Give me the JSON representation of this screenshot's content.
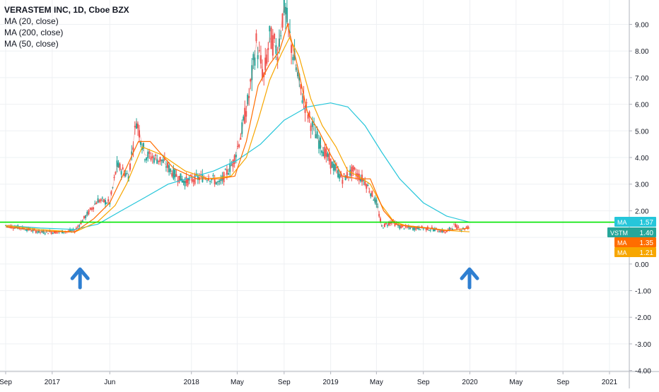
{
  "legend": {
    "title": "VERASTEM INC, 1D, Cboe BZX",
    "ma20": "MA (20, close)",
    "ma200": "MA (200, close)",
    "ma50": "MA (50, close)"
  },
  "colors": {
    "candle_up": "#26a69a",
    "candle_down": "#ef5350",
    "ma20": "#ff6d00",
    "ma50": "#f7a600",
    "ma200": "#26c6da",
    "hline": "#00e600",
    "price_badge": "#26a69a",
    "arrow": "#2f7fd1",
    "grid": "#eef0f3"
  },
  "chart_data": {
    "type": "line",
    "title": "VERASTEM INC, 1D, Cboe BZX",
    "ylim": [
      -4,
      10
    ],
    "grid": true,
    "y_ticks": [
      "9.00",
      "8.00",
      "7.00",
      "6.00",
      "5.00",
      "4.00",
      "3.00",
      "2.00",
      "1.00",
      "0.00",
      "-1.00",
      "-2.00",
      "-3.00",
      "-4.00"
    ],
    "y_tick_values": [
      9,
      8,
      7,
      6,
      5,
      4,
      3,
      2,
      1,
      0,
      -1,
      -2,
      -3,
      -4
    ],
    "x_ticks": [
      "Sep",
      "2017",
      "Jun",
      "2018",
      "May",
      "Sep",
      "2019",
      "May",
      "Sep",
      "2020",
      "May",
      "Sep",
      "2021"
    ],
    "x_tick_times": [
      "2016-09-01",
      "2017-01-01",
      "2017-06-01",
      "2018-01-01",
      "2018-05-01",
      "2018-09-01",
      "2019-01-01",
      "2019-05-01",
      "2019-09-01",
      "2020-01-01",
      "2020-05-01",
      "2020-09-01",
      "2021-01-01"
    ],
    "x_range": [
      "2016-09-01",
      "2021-02-15"
    ],
    "series": [
      {
        "name": "VSTM",
        "kind": "price",
        "x": [
          "2016-09-01",
          "2016-10-15",
          "2016-12-01",
          "2017-01-15",
          "2017-03-01",
          "2017-04-15",
          "2017-05-01",
          "2017-06-01",
          "2017-06-20",
          "2017-07-20",
          "2017-08-10",
          "2017-09-01",
          "2017-10-15",
          "2017-11-15",
          "2017-12-15",
          "2018-01-10",
          "2018-02-15",
          "2018-03-15",
          "2018-04-20",
          "2018-05-10",
          "2018-06-01",
          "2018-06-20",
          "2018-07-10",
          "2018-07-25",
          "2018-08-15",
          "2018-09-01",
          "2018-09-20",
          "2018-10-15",
          "2018-11-10",
          "2018-12-01",
          "2019-01-01",
          "2019-02-01",
          "2019-03-01",
          "2019-04-01",
          "2019-05-01",
          "2019-05-15",
          "2019-06-10",
          "2019-07-01",
          "2019-08-01",
          "2019-09-01",
          "2019-10-01",
          "2019-11-01",
          "2019-11-20",
          "2019-12-10",
          "2019-12-31"
        ],
        "values": [
          1.45,
          1.35,
          1.2,
          1.2,
          1.25,
          2.1,
          2.4,
          2.3,
          3.7,
          3.3,
          5.4,
          4.1,
          3.9,
          3.4,
          3.1,
          3.2,
          3.3,
          3.0,
          3.8,
          4.8,
          6.3,
          8.3,
          7.0,
          8.5,
          8.0,
          9.7,
          8.2,
          6.5,
          5.3,
          4.6,
          3.8,
          3.2,
          3.5,
          3.1,
          2.3,
          1.4,
          1.6,
          1.4,
          1.35,
          1.35,
          1.3,
          1.2,
          1.45,
          1.3,
          1.4
        ]
      },
      {
        "name": "MA (20, close)",
        "kind": "ma20",
        "x": [
          "2016-09-01",
          "2016-12-01",
          "2017-03-01",
          "2017-04-20",
          "2017-06-01",
          "2017-07-01",
          "2017-08-15",
          "2017-09-15",
          "2017-11-15",
          "2018-01-15",
          "2018-03-15",
          "2018-04-25",
          "2018-05-25",
          "2018-06-25",
          "2018-07-25",
          "2018-08-20",
          "2018-09-10",
          "2018-10-05",
          "2018-11-01",
          "2018-12-01",
          "2019-01-01",
          "2019-02-01",
          "2019-03-15",
          "2019-04-15",
          "2019-05-20",
          "2019-06-20",
          "2019-08-01",
          "2019-09-15",
          "2019-11-01",
          "2019-12-01",
          "2019-12-31"
        ],
        "values": [
          1.4,
          1.25,
          1.2,
          1.7,
          2.3,
          3.2,
          4.6,
          4.6,
          3.6,
          3.2,
          3.2,
          3.3,
          4.6,
          6.7,
          7.5,
          8.0,
          9.0,
          7.5,
          5.7,
          5.0,
          4.1,
          3.3,
          3.2,
          3.2,
          2.0,
          1.5,
          1.4,
          1.35,
          1.25,
          1.3,
          1.35
        ]
      },
      {
        "name": "MA (50, close)",
        "kind": "ma50",
        "x": [
          "2016-09-01",
          "2016-12-01",
          "2017-03-01",
          "2017-05-01",
          "2017-06-15",
          "2017-07-15",
          "2017-08-25",
          "2017-10-15",
          "2017-12-15",
          "2018-02-15",
          "2018-04-15",
          "2018-05-25",
          "2018-06-25",
          "2018-07-25",
          "2018-08-25",
          "2018-09-15",
          "2018-10-10",
          "2018-11-10",
          "2018-12-10",
          "2019-01-15",
          "2019-02-15",
          "2019-03-15",
          "2019-04-15",
          "2019-05-15",
          "2019-06-15",
          "2019-07-15",
          "2019-08-15",
          "2019-09-15",
          "2019-10-15",
          "2019-11-15",
          "2019-12-31"
        ],
        "values": [
          1.45,
          1.3,
          1.2,
          1.6,
          2.2,
          3.0,
          4.4,
          4.1,
          3.5,
          3.2,
          3.3,
          4.0,
          5.4,
          6.9,
          7.9,
          8.5,
          7.8,
          6.2,
          5.2,
          4.4,
          3.5,
          3.3,
          3.0,
          2.2,
          1.6,
          1.45,
          1.4,
          1.35,
          1.3,
          1.25,
          1.21
        ]
      },
      {
        "name": "MA (200, close)",
        "kind": "ma200",
        "x": [
          "2016-09-01",
          "2016-12-01",
          "2017-03-01",
          "2017-05-01",
          "2017-07-01",
          "2017-09-01",
          "2017-11-01",
          "2018-01-01",
          "2018-03-01",
          "2018-05-01",
          "2018-07-01",
          "2018-09-01",
          "2018-11-01",
          "2019-01-01",
          "2019-02-15",
          "2019-04-01",
          "2019-05-15",
          "2019-07-01",
          "2019-09-01",
          "2019-11-01",
          "2019-12-31"
        ],
        "values": [
          1.45,
          1.35,
          1.3,
          1.5,
          2.0,
          2.5,
          3.0,
          3.25,
          3.5,
          3.9,
          4.5,
          5.4,
          5.9,
          6.05,
          5.9,
          5.2,
          4.2,
          3.2,
          2.3,
          1.8,
          1.57
        ]
      }
    ],
    "horizontal_line": 1.57,
    "price_labels": [
      {
        "label": "MA",
        "value": "1.57",
        "kind": "ma200"
      },
      {
        "label": "VSTM",
        "value": "1.40",
        "kind": "price"
      },
      {
        "label": "MA",
        "value": "1.35",
        "kind": "ma20"
      },
      {
        "label": "MA",
        "value": "1.21",
        "kind": "ma50"
      }
    ],
    "annotations": [
      {
        "type": "arrow-up",
        "time": "2017-03-15",
        "value": -0.3
      },
      {
        "type": "arrow-up",
        "time": "2019-12-31",
        "value": -0.3
      }
    ]
  }
}
